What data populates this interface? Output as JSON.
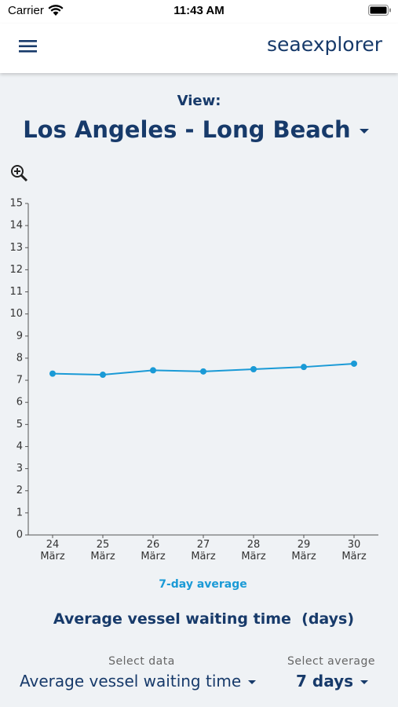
{
  "status_bar": {
    "carrier": "Carrier",
    "time": "11:43 AM"
  },
  "header": {
    "brand": "seaexplorer"
  },
  "view": {
    "label": "View:",
    "selected": "Los Angeles - Long Beach"
  },
  "chart_data": {
    "type": "line",
    "title": "Average vessel waiting time  (days)",
    "categories": [
      "24 März",
      "25 März",
      "26 März",
      "27 März",
      "28 März",
      "29 März",
      "30 März"
    ],
    "series": [
      {
        "name": "7-day average",
        "color": "#1a9ad6",
        "values": [
          7.3,
          7.25,
          7.45,
          7.4,
          7.5,
          7.6,
          7.75
        ]
      }
    ],
    "ylim": [
      0,
      15
    ],
    "yticks": [
      0,
      1,
      2,
      3,
      4,
      5,
      6,
      7,
      8,
      9,
      10,
      11,
      12,
      13,
      14,
      15
    ]
  },
  "controls": [
    {
      "label": "Select data",
      "value": "Average vessel waiting time"
    },
    {
      "label": "Select average",
      "value": "7 days"
    }
  ]
}
